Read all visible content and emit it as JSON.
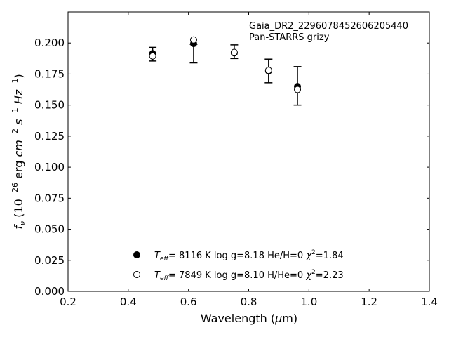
{
  "chart_data": {
    "type": "scatter",
    "annotation": {
      "line1": "Gaia_DR2_2296078452606205440",
      "line2": "Pan-STARRS grizy"
    },
    "xlabel": "Wavelength (μm)",
    "ylabel": "f_ν (10^-26 erg cm^-2 s^-1 Hz^-1)",
    "xlim": [
      0.2,
      1.4
    ],
    "ylim": [
      0.0,
      0.225
    ],
    "x_ticks": [
      0.2,
      0.4,
      0.6,
      0.8,
      1.0,
      1.2,
      1.4
    ],
    "x_tick_labels": [
      "0.2",
      "0.4",
      "0.6",
      "0.8",
      "1.0",
      "1.2",
      "1.4"
    ],
    "y_ticks": [
      0.0,
      0.025,
      0.05,
      0.075,
      0.1,
      0.125,
      0.15,
      0.175,
      0.2
    ],
    "y_tick_labels": [
      "0.000",
      "0.025",
      "0.050",
      "0.075",
      "0.100",
      "0.125",
      "0.150",
      "0.175",
      "0.200"
    ],
    "grid": false,
    "observed": {
      "x": [
        0.481,
        0.617,
        0.752,
        0.866,
        0.962
      ],
      "y": [
        0.191,
        0.1915,
        0.193,
        0.1775,
        0.1655
      ],
      "err": [
        0.0055,
        0.0075,
        0.0055,
        0.0095,
        0.0155
      ]
    },
    "series": [
      {
        "name": "Teff= 8116 K log g=8.18 He/H=0 χ2=1.84",
        "marker": "filled-circle",
        "x": [
          0.481,
          0.617,
          0.752,
          0.866,
          0.962
        ],
        "y": [
          0.1915,
          0.1995,
          0.192,
          0.1775,
          0.165
        ]
      },
      {
        "name": "Teff= 7849 K log g=8.10 H/He=0 χ2=2.23",
        "marker": "open-circle",
        "x": [
          0.481,
          0.617,
          0.752,
          0.866,
          0.962
        ],
        "y": [
          0.1895,
          0.2025,
          0.1925,
          0.178,
          0.1625
        ]
      }
    ],
    "legend": {
      "position": "lower-center",
      "entries": [
        {
          "teff_value": "8116 K",
          "logg": "log g=8.18",
          "comp": "He/H=0",
          "chi2": "=1.84"
        },
        {
          "teff_value": "7849 K",
          "logg": "log g=8.10",
          "comp": "H/He=0",
          "chi2": "=2.23"
        }
      ]
    }
  }
}
